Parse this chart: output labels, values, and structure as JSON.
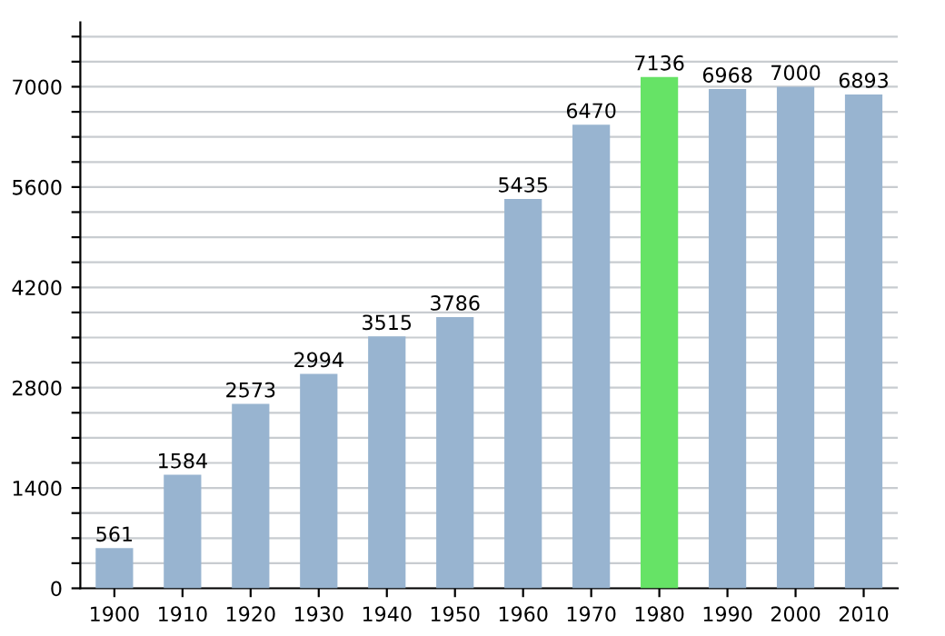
{
  "chart_data": {
    "type": "bar",
    "categories": [
      "1900",
      "1910",
      "1920",
      "1930",
      "1940",
      "1950",
      "1960",
      "1970",
      "1980",
      "1990",
      "2000",
      "2010"
    ],
    "values": [
      561,
      1584,
      2573,
      2994,
      3515,
      3786,
      5435,
      6470,
      7136,
      6968,
      7000,
      6893
    ],
    "colors": [
      "#98b4d0",
      "#98b4d0",
      "#98b4d0",
      "#98b4d0",
      "#98b4d0",
      "#98b4d0",
      "#98b4d0",
      "#98b4d0",
      "#66e366",
      "#98b4d0",
      "#98b4d0",
      "#98b4d0"
    ],
    "ylim": [
      0,
      7900
    ],
    "yticks": [
      0,
      {
        "value": 350,
        "label": null
      },
      {
        "value": 700,
        "label": null
      },
      {
        "value": 1050,
        "label": null
      },
      1400,
      {
        "value": 1750,
        "label": null
      },
      {
        "value": 2100,
        "label": null
      },
      {
        "value": 2450,
        "label": null
      },
      2800,
      {
        "value": 3150,
        "label": null
      },
      {
        "value": 3500,
        "label": null
      },
      {
        "value": 3850,
        "label": null
      },
      4200,
      {
        "value": 4550,
        "label": null
      },
      {
        "value": 4900,
        "label": null
      },
      {
        "value": 5250,
        "label": null
      },
      5600,
      {
        "value": 5950,
        "label": null
      },
      {
        "value": 6300,
        "label": null
      },
      {
        "value": 6650,
        "label": null
      },
      7000,
      {
        "value": 7350,
        "label": null
      },
      {
        "value": 7700,
        "label": null
      }
    ],
    "grid": "y",
    "data_labels": true,
    "legend": false
  }
}
